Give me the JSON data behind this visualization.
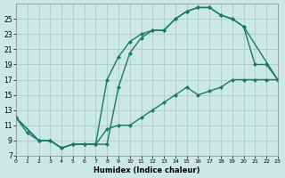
{
  "xlabel": "Humidex (Indice chaleur)",
  "bg_color": "#cce8e2",
  "grid_color": "#aacccc",
  "line_color": "#1a7a6a",
  "xlim": [
    0,
    23
  ],
  "ylim": [
    7,
    27
  ],
  "xticks": [
    0,
    1,
    2,
    3,
    4,
    5,
    6,
    7,
    8,
    9,
    10,
    11,
    12,
    13,
    14,
    15,
    16,
    17,
    18,
    19,
    20,
    21,
    22,
    23
  ],
  "yticks": [
    7,
    9,
    11,
    13,
    15,
    17,
    19,
    21,
    23,
    25
  ],
  "curve1_x": [
    0,
    1,
    2,
    3,
    4,
    5,
    6,
    7,
    8,
    9,
    10,
    11,
    12,
    13,
    14,
    15,
    16,
    17,
    18,
    19,
    20,
    21,
    22,
    23
  ],
  "curve1_y": [
    12,
    10,
    9,
    9,
    8,
    8.5,
    8.5,
    8.5,
    17,
    20,
    22,
    23,
    23.5,
    23.5,
    25,
    26,
    26.5,
    26.5,
    25.5,
    25,
    24,
    19,
    19,
    17
  ],
  "curve2_x": [
    0,
    2,
    3,
    4,
    5,
    6,
    7,
    8,
    9,
    10,
    11,
    12,
    13,
    14,
    15,
    16,
    17,
    18,
    19,
    20,
    23
  ],
  "curve2_y": [
    12,
    9,
    9,
    8,
    8.5,
    8.5,
    8.5,
    8.5,
    16,
    20.5,
    22.5,
    23.5,
    23.5,
    25,
    26,
    26.5,
    26.5,
    25.5,
    25,
    24,
    17
  ],
  "curve3_x": [
    0,
    2,
    3,
    4,
    5,
    6,
    7,
    8,
    9,
    10,
    11,
    12,
    13,
    14,
    15,
    16,
    17,
    18,
    19,
    20,
    21,
    22,
    23
  ],
  "curve3_y": [
    12,
    9,
    9,
    8,
    8.5,
    8.5,
    8.5,
    10.5,
    11,
    11,
    12,
    13,
    14,
    15,
    16,
    15,
    15.5,
    16,
    17,
    17,
    17,
    17,
    17
  ]
}
